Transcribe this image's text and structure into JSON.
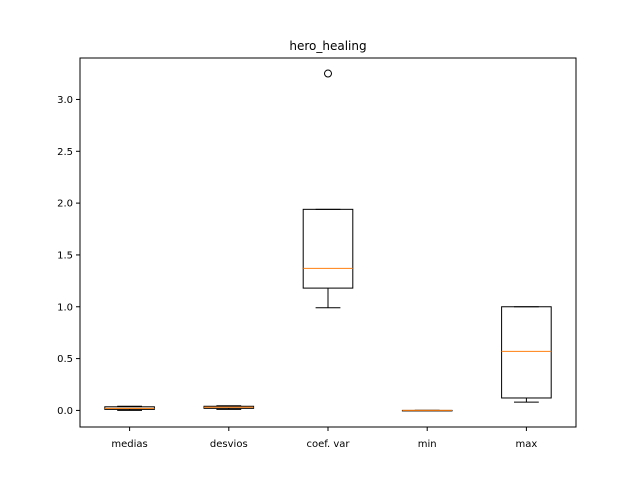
{
  "chart_data": {
    "type": "boxplot",
    "title": "hero_healing",
    "xlabel": "",
    "ylabel": "",
    "ylim": [
      -0.16,
      3.4
    ],
    "y_ticks": [
      0.0,
      0.5,
      1.0,
      1.5,
      2.0,
      2.5,
      3.0
    ],
    "y_tick_labels": [
      "0.0",
      "0.5",
      "1.0",
      "1.5",
      "2.0",
      "2.5",
      "3.0"
    ],
    "grid": false,
    "categories": [
      "medias",
      "desvios",
      "coef. var",
      "min",
      "max"
    ],
    "boxes": [
      {
        "label": "medias",
        "whisker_low": 0.0,
        "q1": 0.01,
        "median": 0.02,
        "q3": 0.035,
        "whisker_high": 0.04,
        "outliers": []
      },
      {
        "label": "desvios",
        "whisker_low": 0.01,
        "q1": 0.02,
        "median": 0.03,
        "q3": 0.04,
        "whisker_high": 0.045,
        "outliers": []
      },
      {
        "label": "coef. var",
        "whisker_low": 0.99,
        "q1": 1.18,
        "median": 1.37,
        "q3": 1.94,
        "whisker_high": 1.94,
        "outliers": [
          3.25
        ]
      },
      {
        "label": "min",
        "whisker_low": 0.0,
        "q1": 0.0,
        "median": 0.0,
        "q3": 0.0,
        "whisker_high": 0.0,
        "outliers": []
      },
      {
        "label": "max",
        "whisker_low": 0.08,
        "q1": 0.12,
        "median": 0.57,
        "q3": 1.0,
        "whisker_high": 1.0,
        "outliers": []
      }
    ],
    "colors": {
      "box": "#000000",
      "median": "#ff7f0e",
      "outlier": "#000000"
    }
  }
}
